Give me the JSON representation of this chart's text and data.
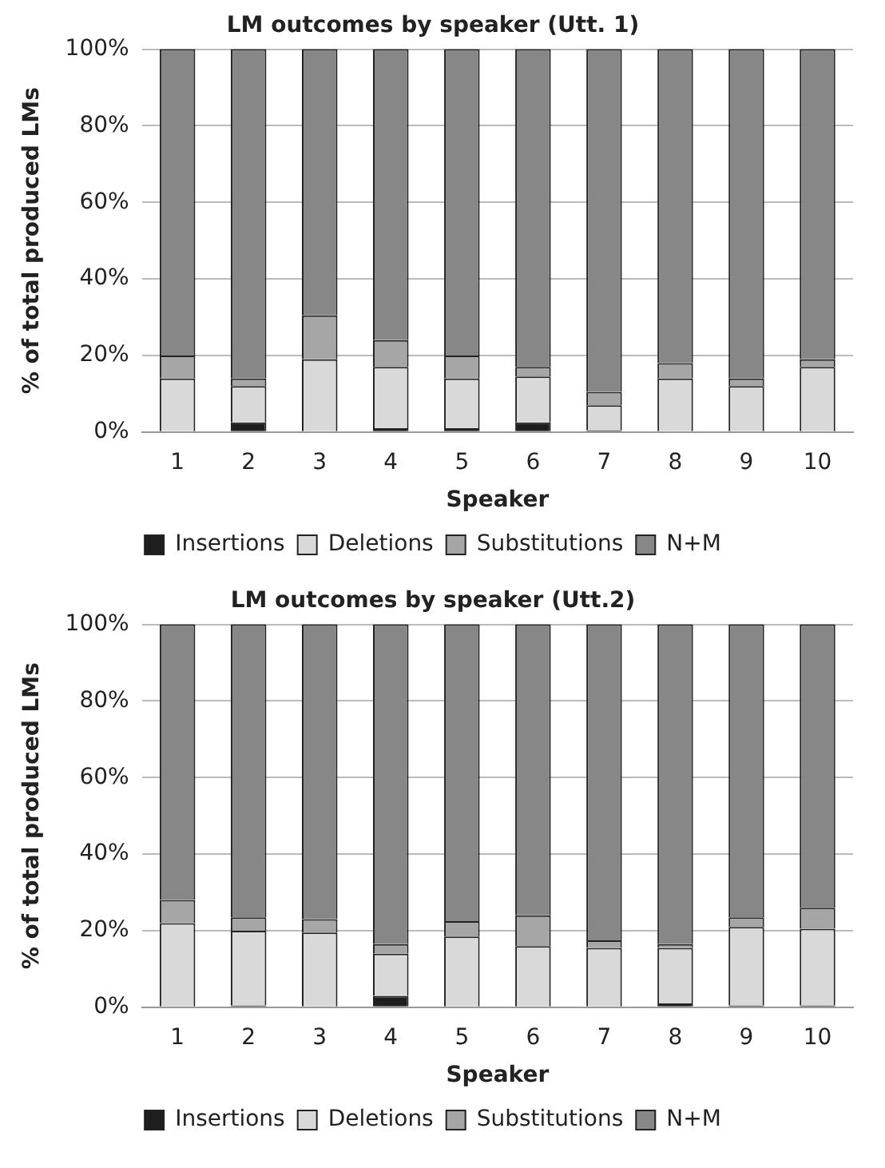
{
  "chart_data": [
    {
      "type": "bar",
      "title": "LM outcomes by speaker (Utt. 1)",
      "xlabel": "Speaker",
      "ylabel": "% of total produced LMs",
      "categories": [
        "1",
        "2",
        "3",
        "4",
        "5",
        "6",
        "7",
        "8",
        "9",
        "10"
      ],
      "stacked": true,
      "legend": "bottom",
      "grid": "y",
      "ylim": [
        0,
        100
      ],
      "yticks": [
        {
          "value": 0,
          "label": "0%"
        },
        {
          "value": 20,
          "label": "20%"
        },
        {
          "value": 40,
          "label": "40%"
        },
        {
          "value": 60,
          "label": "60%"
        },
        {
          "value": 80,
          "label": "80%"
        },
        {
          "value": 100,
          "label": "100%"
        }
      ],
      "series": [
        {
          "name": "Insertions",
          "color": "#1e1e1e",
          "values": [
            0,
            2.5,
            0,
            1,
            1,
            2.5,
            0.5,
            0,
            0,
            0
          ]
        },
        {
          "name": "Deletions",
          "color": "#d9d9d9",
          "values": [
            14,
            9.5,
            19,
            16,
            13,
            12,
            6.5,
            14,
            12,
            17
          ]
        },
        {
          "name": "Substitutions",
          "color": "#a6a6a6",
          "values": [
            6,
            2,
            11.5,
            7,
            6,
            2.5,
            3.5,
            4,
            2,
            2
          ]
        },
        {
          "name": "N+M",
          "color": "#878787",
          "values": [
            80,
            86,
            69.5,
            76,
            80,
            83,
            89.5,
            82,
            86,
            81
          ]
        }
      ]
    },
    {
      "type": "bar",
      "title": "LM outcomes by speaker (Utt.2)",
      "xlabel": "Speaker",
      "ylabel": "% of total produced LMs",
      "categories": [
        "1",
        "2",
        "3",
        "4",
        "5",
        "6",
        "7",
        "8",
        "9",
        "10"
      ],
      "stacked": true,
      "legend": "bottom",
      "grid": "y",
      "ylim": [
        0,
        100
      ],
      "yticks": [
        {
          "value": 0,
          "label": "0%"
        },
        {
          "value": 20,
          "label": "20%"
        },
        {
          "value": 40,
          "label": "40%"
        },
        {
          "value": 60,
          "label": "60%"
        },
        {
          "value": 80,
          "label": "80%"
        },
        {
          "value": 100,
          "label": "100%"
        }
      ],
      "series": [
        {
          "name": "Insertions",
          "color": "#1e1e1e",
          "values": [
            0,
            0.5,
            0,
            3,
            0,
            0,
            0,
            1,
            0.5,
            0.5
          ]
        },
        {
          "name": "Deletions",
          "color": "#d9d9d9",
          "values": [
            22,
            19.5,
            19.5,
            11,
            18.5,
            16,
            15.5,
            14.5,
            20.5,
            20
          ]
        },
        {
          "name": "Substitutions",
          "color": "#a6a6a6",
          "values": [
            6,
            3.5,
            3.5,
            2.5,
            4,
            8,
            2,
            1,
            2.5,
            5.5
          ]
        },
        {
          "name": "N+M",
          "color": "#878787",
          "values": [
            72,
            76.5,
            77,
            83.5,
            77.5,
            76,
            82.5,
            83.5,
            76.5,
            74
          ]
        }
      ]
    }
  ]
}
